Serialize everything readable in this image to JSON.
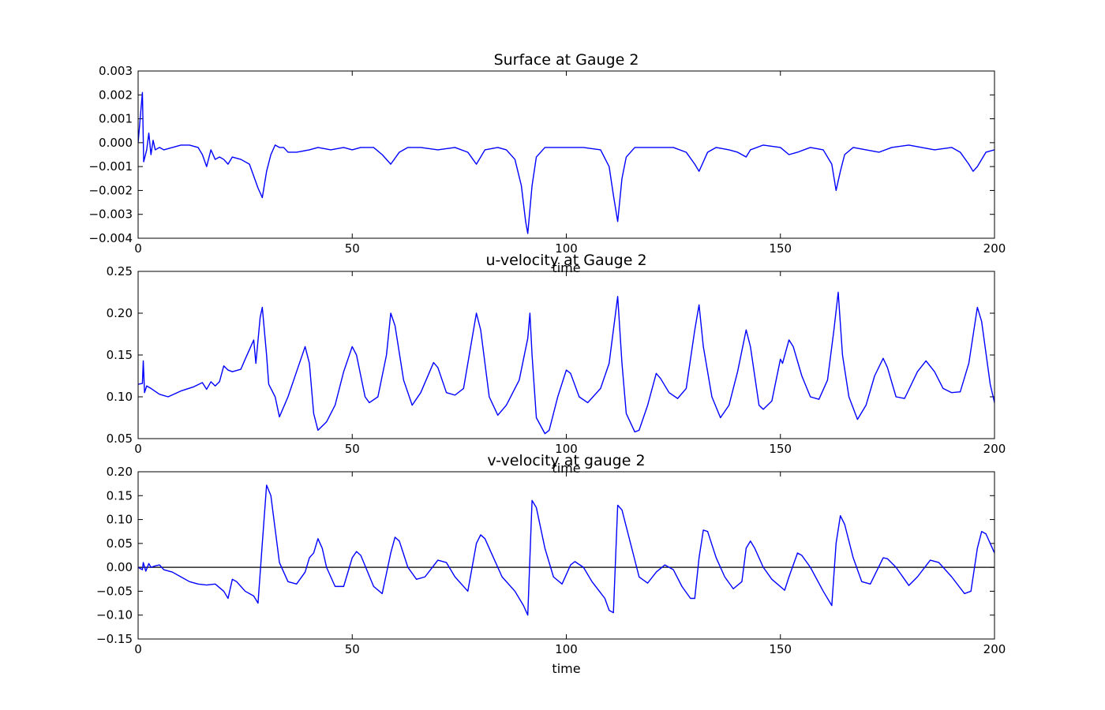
{
  "chart_data": [
    {
      "type": "line",
      "title": "Surface at Gauge 2",
      "xlabel": "time",
      "x": [
        0,
        1,
        1.3,
        2,
        2.5,
        3,
        3.5,
        4,
        5,
        6,
        8,
        10,
        12,
        14,
        15,
        16,
        17,
        18,
        19,
        20,
        21,
        22,
        24,
        26,
        27,
        28,
        29,
        30,
        31,
        32,
        33,
        34,
        35,
        37,
        40,
        42,
        45,
        48,
        50,
        52,
        55,
        57,
        59,
        61,
        63,
        66,
        70,
        74,
        77,
        79,
        81,
        84,
        86,
        88,
        89.5,
        90.5,
        91,
        92,
        93,
        95,
        98,
        100,
        104,
        108,
        110,
        111,
        112,
        113,
        114,
        116,
        120,
        125,
        128,
        130,
        131,
        133,
        135,
        138,
        140,
        142,
        143,
        146,
        150,
        152,
        154,
        157,
        160,
        162,
        163,
        164,
        165,
        167,
        170,
        173,
        176,
        180,
        183,
        186,
        190,
        192,
        194,
        195,
        196,
        198,
        200
      ],
      "series": [
        {
          "color": "#0000ff",
          "values": [
            0,
            0.0021,
            -0.0008,
            -0.0003,
            0.0004,
            -0.0005,
            0.0001,
            -0.0003,
            -0.0002,
            -0.0003,
            -0.0002,
            -0.0001,
            -0.0001,
            -0.0002,
            -0.0005,
            -0.001,
            -0.0003,
            -0.0007,
            -0.0006,
            -0.0007,
            -0.0009,
            -0.0006,
            -0.0007,
            -0.0009,
            -0.0014,
            -0.0019,
            -0.0023,
            -0.0012,
            -0.0005,
            -0.0001,
            -0.0002,
            -0.0002,
            -0.0004,
            -0.0004,
            -0.0003,
            -0.0002,
            -0.0003,
            -0.0002,
            -0.0003,
            -0.0002,
            -0.0002,
            -0.0005,
            -0.0009,
            -0.0004,
            -0.0002,
            -0.0002,
            -0.0003,
            -0.0002,
            -0.0004,
            -0.0009,
            -0.0003,
            -0.0002,
            -0.0003,
            -0.0007,
            -0.0018,
            -0.0033,
            -0.0038,
            -0.0018,
            -0.0006,
            -0.0002,
            -0.0002,
            -0.0002,
            -0.0002,
            -0.0003,
            -0.001,
            -0.0022,
            -0.0033,
            -0.0015,
            -0.0006,
            -0.0002,
            -0.0002,
            -0.0002,
            -0.0004,
            -0.0009,
            -0.0012,
            -0.0004,
            -0.0002,
            -0.0003,
            -0.0004,
            -0.0006,
            -0.0003,
            -0.0001,
            -0.0002,
            -0.0005,
            -0.0004,
            -0.0002,
            -0.0003,
            -0.0009,
            -0.002,
            -0.0012,
            -0.0005,
            -0.0002,
            -0.0003,
            -0.0004,
            -0.0002,
            -0.0001,
            -0.0002,
            -0.0003,
            -0.0002,
            -0.0004,
            -0.0009,
            -0.0012,
            -0.001,
            -0.0004,
            -0.0003
          ]
        }
      ],
      "xlim": [
        0,
        200
      ],
      "xticks": [
        0,
        50,
        100,
        150,
        200
      ],
      "ylim": [
        -0.004,
        0.003
      ],
      "yticks": [
        {
          "value": -0.004,
          "label": "−0.004"
        },
        {
          "value": -0.003,
          "label": "−0.003"
        },
        {
          "value": -0.002,
          "label": "−0.002"
        },
        {
          "value": -0.001,
          "label": "−0.001"
        },
        {
          "value": 0,
          "label": "0.000"
        },
        0.001,
        0.002,
        0.003
      ]
    },
    {
      "type": "line",
      "title": "u-velocity at Gauge 2",
      "xlabel": "time",
      "x": [
        0,
        1,
        1.2,
        1.5,
        2,
        3,
        5,
        7,
        10,
        13,
        15,
        16,
        17,
        18,
        19,
        20,
        21,
        22,
        24,
        25,
        27,
        27.5,
        28.5,
        29,
        30,
        30.5,
        32,
        33,
        35,
        37,
        39,
        40,
        41,
        42,
        44,
        46,
        48,
        50,
        51,
        53,
        54,
        56,
        58,
        59,
        60,
        62,
        64,
        66,
        69,
        70,
        72,
        74,
        76,
        78,
        79,
        80,
        82,
        84,
        86,
        89,
        91,
        91.5,
        92,
        93,
        95,
        96,
        98,
        100,
        101,
        103,
        105,
        108,
        110,
        112,
        113,
        114,
        116,
        117,
        119,
        121,
        122,
        124,
        126,
        128,
        130,
        131,
        132,
        134,
        136,
        138,
        140,
        142,
        143,
        145,
        146,
        148,
        150,
        150.5,
        152,
        153,
        155,
        157,
        159,
        161,
        162.5,
        163.5,
        164.5,
        166,
        168,
        170,
        172,
        174,
        175,
        177,
        179,
        182,
        184,
        186,
        188,
        190,
        192,
        194,
        196,
        197,
        199,
        200
      ],
      "series": [
        {
          "color": "#0000ff",
          "values": [
            0.115,
            0.116,
            0.143,
            0.105,
            0.113,
            0.11,
            0.103,
            0.1,
            0.107,
            0.112,
            0.117,
            0.109,
            0.118,
            0.113,
            0.118,
            0.137,
            0.132,
            0.13,
            0.133,
            0.145,
            0.168,
            0.14,
            0.195,
            0.207,
            0.15,
            0.115,
            0.1,
            0.076,
            0.1,
            0.13,
            0.16,
            0.14,
            0.08,
            0.06,
            0.07,
            0.09,
            0.13,
            0.16,
            0.15,
            0.1,
            0.093,
            0.1,
            0.15,
            0.2,
            0.185,
            0.12,
            0.09,
            0.105,
            0.141,
            0.135,
            0.105,
            0.102,
            0.11,
            0.17,
            0.2,
            0.18,
            0.1,
            0.078,
            0.09,
            0.12,
            0.17,
            0.2,
            0.15,
            0.075,
            0.056,
            0.06,
            0.1,
            0.132,
            0.128,
            0.1,
            0.093,
            0.11,
            0.14,
            0.22,
            0.14,
            0.08,
            0.058,
            0.06,
            0.09,
            0.128,
            0.122,
            0.105,
            0.098,
            0.11,
            0.18,
            0.21,
            0.16,
            0.1,
            0.075,
            0.09,
            0.13,
            0.18,
            0.16,
            0.09,
            0.085,
            0.095,
            0.145,
            0.14,
            0.168,
            0.16,
            0.125,
            0.1,
            0.097,
            0.12,
            0.18,
            0.225,
            0.15,
            0.1,
            0.073,
            0.09,
            0.125,
            0.146,
            0.135,
            0.1,
            0.098,
            0.13,
            0.143,
            0.13,
            0.11,
            0.105,
            0.106,
            0.14,
            0.207,
            0.19,
            0.115,
            0.093
          ]
        }
      ],
      "xlim": [
        0,
        200
      ],
      "xticks": [
        0,
        50,
        100,
        150,
        200
      ],
      "ylim": [
        0.05,
        0.25
      ],
      "yticks": [
        0.05,
        {
          "value": 0.1,
          "label": "0.10"
        },
        0.15,
        {
          "value": 0.2,
          "label": "0.20"
        },
        0.25
      ]
    },
    {
      "type": "line",
      "title": "v-velocity at gauge 2",
      "xlabel": "time",
      "hline": 0,
      "x": [
        0,
        1,
        1.2,
        1.8,
        2.5,
        3,
        4,
        5,
        6,
        8,
        10,
        12,
        14,
        16,
        18,
        20,
        21,
        22,
        23,
        25,
        27,
        28,
        29,
        30,
        31,
        32,
        33,
        35,
        37,
        39,
        40,
        41,
        42,
        43,
        44,
        46,
        48,
        50,
        51,
        52,
        55,
        57,
        59,
        60,
        61,
        63,
        65,
        67,
        70,
        72,
        74,
        77,
        79,
        80,
        81,
        83,
        85,
        88,
        90,
        91,
        92,
        93,
        95,
        97,
        99,
        101,
        102,
        104,
        106,
        109,
        110,
        111,
        112,
        113,
        115,
        117,
        119,
        121,
        123,
        125,
        127,
        129,
        130,
        131,
        132,
        133,
        135,
        137,
        139,
        141,
        142,
        143,
        144,
        146,
        148,
        151,
        152,
        154,
        155,
        157,
        160,
        162,
        163,
        164,
        165,
        167,
        169,
        171,
        174,
        175,
        177,
        180,
        182,
        185,
        187,
        190,
        193,
        194.5,
        196,
        197,
        198,
        200
      ],
      "series": [
        {
          "color": "#0000ff",
          "values": [
            0,
            -0.005,
            0.01,
            -0.008,
            0.008,
            0,
            0.003,
            0.005,
            -0.005,
            -0.01,
            -0.02,
            -0.03,
            -0.035,
            -0.037,
            -0.035,
            -0.05,
            -0.065,
            -0.025,
            -0.03,
            -0.05,
            -0.06,
            -0.075,
            0.05,
            0.172,
            0.15,
            0.08,
            0.01,
            -0.03,
            -0.035,
            -0.01,
            0.02,
            0.03,
            0.06,
            0.04,
            0,
            -0.04,
            -0.04,
            0.02,
            0.033,
            0.025,
            -0.04,
            -0.055,
            0.03,
            0.063,
            0.055,
            0,
            -0.025,
            -0.02,
            0.015,
            0.01,
            -0.02,
            -0.05,
            0.05,
            0.068,
            0.06,
            0.02,
            -0.02,
            -0.05,
            -0.08,
            -0.1,
            0.14,
            0.125,
            0.04,
            -0.02,
            -0.035,
            0.005,
            0.012,
            0,
            -0.03,
            -0.065,
            -0.09,
            -0.095,
            0.13,
            0.12,
            0.05,
            -0.02,
            -0.033,
            -0.01,
            0.005,
            -0.005,
            -0.04,
            -0.065,
            -0.065,
            0.02,
            0.078,
            0.075,
            0.02,
            -0.02,
            -0.045,
            -0.03,
            0.04,
            0.055,
            0.04,
            0,
            -0.025,
            -0.048,
            -0.02,
            0.03,
            0.025,
            0,
            -0.05,
            -0.08,
            0.05,
            0.108,
            0.09,
            0.02,
            -0.03,
            -0.035,
            0.02,
            0.018,
            0,
            -0.038,
            -0.02,
            0.015,
            0.01,
            -0.02,
            -0.055,
            -0.05,
            0.04,
            0.075,
            0.07,
            0.03
          ]
        }
      ],
      "xlim": [
        0,
        200
      ],
      "xticks": [
        0,
        50,
        100,
        150,
        200
      ],
      "ylim": [
        -0.15,
        0.2
      ],
      "yticks": [
        {
          "value": -0.15,
          "label": "−0.15"
        },
        {
          "value": -0.1,
          "label": "−0.10"
        },
        {
          "value": -0.05,
          "label": "−0.05"
        },
        {
          "value": 0,
          "label": "0.00"
        },
        0.05,
        {
          "value": 0.1,
          "label": "0.10"
        },
        0.15,
        {
          "value": 0.2,
          "label": "0.20"
        }
      ]
    }
  ]
}
